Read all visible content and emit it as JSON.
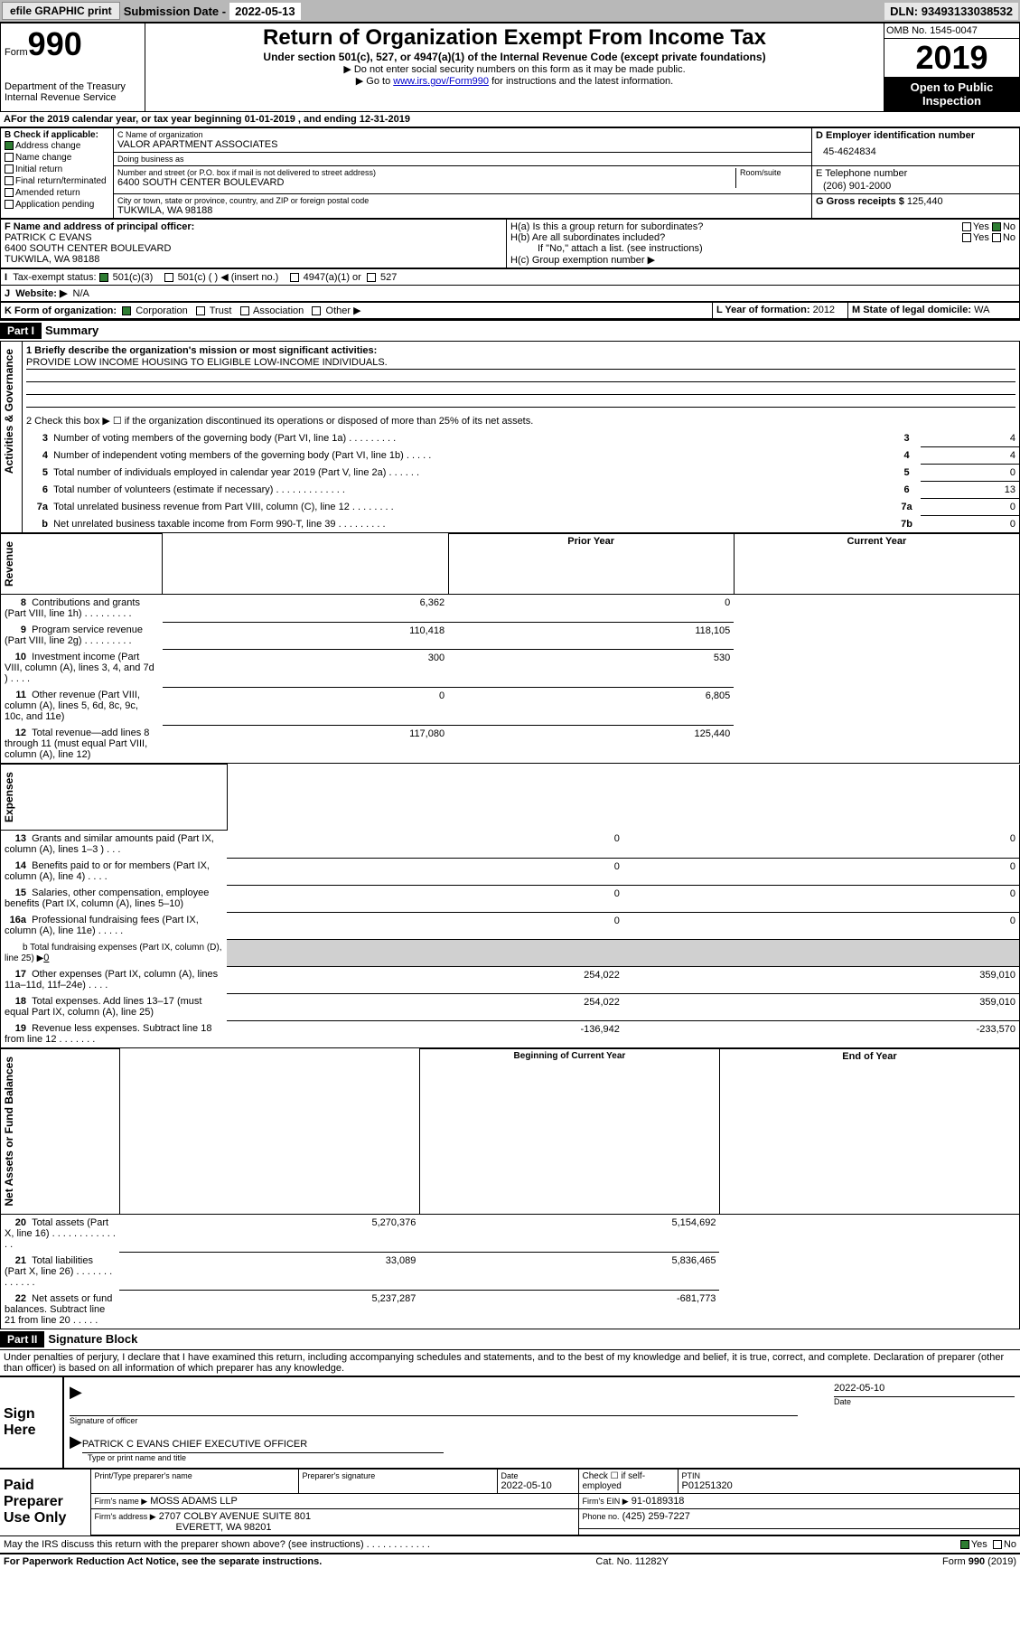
{
  "topbar": {
    "efile": "efile GRAPHIC print",
    "submission_label": "Submission Date -",
    "submission_date": "2022-05-13",
    "dln_label": "DLN:",
    "dln": "93493133038532"
  },
  "header": {
    "form_word": "Form",
    "form_num": "990",
    "dept": "Department of the Treasury Internal Revenue Service",
    "title": "Return of Organization Exempt From Income Tax",
    "subtitle": "Under section 501(c), 527, or 4947(a)(1) of the Internal Revenue Code (except private foundations)",
    "instr1": "▶ Do not enter social security numbers on this form as it may be made public.",
    "instr2_pre": "▶ Go to ",
    "instr2_link": "www.irs.gov/Form990",
    "instr2_post": " for instructions and the latest information.",
    "omb": "OMB No. 1545-0047",
    "year": "2019",
    "open_public": "Open to Public Inspection"
  },
  "period": {
    "text_pre": "For the 2019 calendar year, or tax year beginning ",
    "begin": "01-01-2019",
    "text_mid": " , and ending ",
    "end": "12-31-2019"
  },
  "boxB": {
    "title": "B Check if applicable:",
    "address_change": "Address change",
    "name_change": "Name change",
    "initial_return": "Initial return",
    "final_return": "Final return/terminated",
    "amended_return": "Amended return",
    "application_pending": "Application pending"
  },
  "boxC": {
    "name_label": "C Name of organization",
    "name": "VALOR APARTMENT ASSOCIATES",
    "dba_label": "Doing business as",
    "dba": "",
    "street_label": "Number and street (or P.O. box if mail is not delivered to street address)",
    "room_label": "Room/suite",
    "street": "6400 SOUTH CENTER BOULEVARD",
    "city_label": "City or town, state or province, country, and ZIP or foreign postal code",
    "city": "TUKWILA, WA  98188"
  },
  "boxD": {
    "label": "D Employer identification number",
    "value": "45-4624834"
  },
  "boxE": {
    "label": "E Telephone number",
    "value": "(206) 901-2000"
  },
  "boxG": {
    "label": "G Gross receipts $",
    "value": "125,440"
  },
  "boxF": {
    "label": "F  Name and address of principal officer:",
    "name": "PATRICK C EVANS",
    "street": "6400 SOUTH CENTER BOULEVARD",
    "city": "TUKWILA, WA  98188"
  },
  "boxH": {
    "a_text": "H(a)  Is this a group return for subordinates?",
    "b_text": "H(b)  Are all subordinates included?",
    "b_note": "If \"No,\" attach a list. (see instructions)",
    "c_text": "H(c)  Group exemption number ▶",
    "yes": "Yes",
    "no": "No"
  },
  "boxI": {
    "label": "Tax-exempt status:",
    "opt1": "501(c)(3)",
    "opt2": "501(c) (   ) ◀ (insert no.)",
    "opt3": "4947(a)(1) or",
    "opt4": "527"
  },
  "boxJ": {
    "label": "Website: ▶",
    "value": "N/A"
  },
  "boxK": {
    "label": "K Form of organization:",
    "corp": "Corporation",
    "trust": "Trust",
    "assoc": "Association",
    "other": "Other ▶"
  },
  "boxL": {
    "label": "L Year of formation:",
    "value": "2012"
  },
  "boxM": {
    "label": "M State of legal domicile:",
    "value": "WA"
  },
  "part1": {
    "header": "Part I",
    "title": "Summary",
    "vlabel_gov": "Activities & Governance",
    "vlabel_rev": "Revenue",
    "vlabel_exp": "Expenses",
    "vlabel_net": "Net Assets or Fund Balances",
    "line1_label": "1  Briefly describe the organization's mission or most significant activities:",
    "mission": "PROVIDE LOW INCOME HOUSING TO ELIGIBLE LOW-INCOME INDIVIDUALS.",
    "line2": "2   Check this box ▶ ☐  if the organization discontinued its operations or disposed of more than 25% of its net assets.",
    "lines_gov": [
      {
        "n": "3",
        "t": "Number of voting members of the governing body (Part VI, line 1a)   .    .    .    .    .    .    .    .    .",
        "c": "3",
        "v": "4"
      },
      {
        "n": "4",
        "t": "Number of independent voting members of the governing body (Part VI, line 1b)   .    .    .    .    .",
        "c": "4",
        "v": "4"
      },
      {
        "n": "5",
        "t": "Total number of individuals employed in calendar year 2019 (Part V, line 2a)   .    .    .    .    .    .",
        "c": "5",
        "v": "0"
      },
      {
        "n": "6",
        "t": "Total number of volunteers (estimate if necessary)   .    .    .    .    .    .    .    .    .    .    .    .    .",
        "c": "6",
        "v": "13"
      },
      {
        "n": "7a",
        "t": "Total unrelated business revenue from Part VIII, column (C), line 12   .    .    .    .    .    .    .    .",
        "c": "7a",
        "v": "0"
      },
      {
        "n": "b",
        "t": "Net unrelated business taxable income from Form 990-T, line 39   .    .    .    .    .    .    .    .    .",
        "c": "7b",
        "v": "0"
      }
    ],
    "col_prior": "Prior Year",
    "col_current": "Current Year",
    "col_begin": "Beginning of Current Year",
    "col_end": "End of Year",
    "lines_rev": [
      {
        "n": "8",
        "t": "Contributions and grants (Part VIII, line 1h)   .    .    .    .    .    .    .    .    .",
        "p": "6,362",
        "c": "0"
      },
      {
        "n": "9",
        "t": "Program service revenue (Part VIII, line 2g)   .    .    .    .    .    .    .    .    .",
        "p": "110,418",
        "c": "118,105"
      },
      {
        "n": "10",
        "t": "Investment income (Part VIII, column (A), lines 3, 4, and 7d )   .    .    .    .",
        "p": "300",
        "c": "530"
      },
      {
        "n": "11",
        "t": "Other revenue (Part VIII, column (A), lines 5, 6d, 8c, 9c, 10c, and 11e)",
        "p": "0",
        "c": "6,805"
      },
      {
        "n": "12",
        "t": "Total revenue—add lines 8 through 11 (must equal Part VIII, column (A), line 12)",
        "p": "117,080",
        "c": "125,440"
      }
    ],
    "lines_exp": [
      {
        "n": "13",
        "t": "Grants and similar amounts paid (Part IX, column (A), lines 1–3 )   .    .    .",
        "p": "0",
        "c": "0"
      },
      {
        "n": "14",
        "t": "Benefits paid to or for members (Part IX, column (A), line 4)   .    .    .    .",
        "p": "0",
        "c": "0"
      },
      {
        "n": "15",
        "t": "Salaries, other compensation, employee benefits (Part IX, column (A), lines 5–10)",
        "p": "0",
        "c": "0"
      },
      {
        "n": "16a",
        "t": "Professional fundraising fees (Part IX, column (A), line 11e)   .    .    .    .    .",
        "p": "0",
        "c": "0"
      }
    ],
    "line16b_pre": "b   Total fundraising expenses (Part IX, column (D), line 25) ▶",
    "line16b_val": "0",
    "lines_exp2": [
      {
        "n": "17",
        "t": "Other expenses (Part IX, column (A), lines 11a–11d, 11f–24e)   .    .    .    .",
        "p": "254,022",
        "c": "359,010"
      },
      {
        "n": "18",
        "t": "Total expenses. Add lines 13–17 (must equal Part IX, column (A), line 25)",
        "p": "254,022",
        "c": "359,010"
      },
      {
        "n": "19",
        "t": "Revenue less expenses. Subtract line 18 from line 12   .    .    .    .    .    .    .",
        "p": "-136,942",
        "c": "-233,570"
      }
    ],
    "lines_net": [
      {
        "n": "20",
        "t": "Total assets (Part X, line 16)   .    .    .    .    .    .    .    .    .    .    .    .    .    .",
        "p": "5,270,376",
        "c": "5,154,692"
      },
      {
        "n": "21",
        "t": "Total liabilities (Part X, line 26)   .    .    .    .    .    .    .    .    .    .    .    .    .",
        "p": "33,089",
        "c": "5,836,465"
      },
      {
        "n": "22",
        "t": "Net assets or fund balances. Subtract line 21 from line 20   .    .    .    .    .",
        "p": "5,237,287",
        "c": "-681,773"
      }
    ]
  },
  "part2": {
    "header": "Part II",
    "title": "Signature Block",
    "decl": "Under penalties of perjury, I declare that I have examined this return, including accompanying schedules and statements, and to the best of my knowledge and belief, it is true, correct, and complete. Declaration of preparer (other than officer) is based on all information of which preparer has any knowledge.",
    "sign_here": "Sign Here",
    "sig_officer": "Signature of officer",
    "date_label": "Date",
    "sig_date": "2022-05-10",
    "officer_name": "PATRICK C EVANS  CHIEF EXECUTIVE OFFICER",
    "type_name": "Type or print name and title",
    "paid": "Paid Preparer Use Only",
    "prep_name_label": "Print/Type preparer's name",
    "prep_sig_label": "Preparer's signature",
    "prep_date_label": "Date",
    "prep_date": "2022-05-10",
    "self_emp": "Check ☐  if self-employed",
    "ptin_label": "PTIN",
    "ptin": "P01251320",
    "firm_name_label": "Firm's name     ▶",
    "firm_name": "MOSS ADAMS LLP",
    "firm_ein_label": "Firm's EIN ▶",
    "firm_ein": "91-0189318",
    "firm_addr_label": "Firm's address ▶",
    "firm_addr1": "2707 COLBY AVENUE SUITE 801",
    "firm_addr2": "EVERETT, WA  98201",
    "phone_label": "Phone no.",
    "phone": "(425) 259-7227",
    "discuss": "May the IRS discuss this return with the preparer shown above? (see instructions)   .    .    .    .    .    .    .    .    .    .    .    .",
    "yes": "Yes",
    "no": "No"
  },
  "footer": {
    "paperwork": "For Paperwork Reduction Act Notice, see the separate instructions.",
    "cat": "Cat. No. 11282Y",
    "form": "Form 990 (2019)"
  }
}
